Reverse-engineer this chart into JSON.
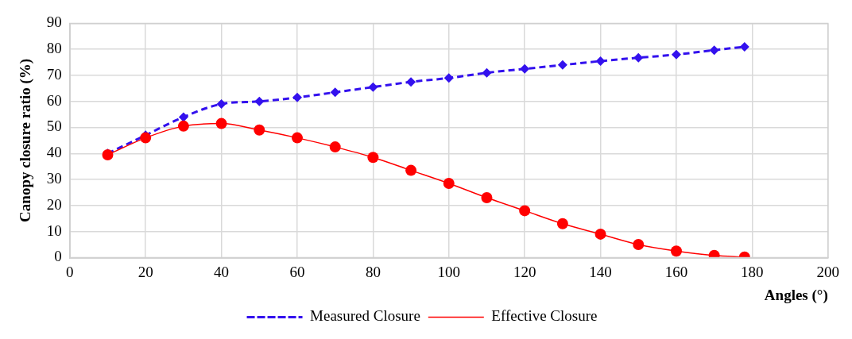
{
  "chart_data": {
    "type": "line",
    "xlabel": "Angles (°)",
    "ylabel": "Canopy closure ratio (%)",
    "x": [
      10,
      20,
      30,
      40,
      50,
      60,
      70,
      80,
      90,
      100,
      110,
      120,
      130,
      140,
      150,
      160,
      170,
      178
    ],
    "series": [
      {
        "name": "Measured Closure",
        "color": "#3311ee",
        "marker": "diamond",
        "line_style": "dashed",
        "values": [
          40,
          47,
          54,
          59,
          60,
          61.5,
          63.5,
          65.5,
          67.5,
          69,
          71,
          72.5,
          74,
          75.5,
          76.8,
          78,
          79.7,
          81
        ]
      },
      {
        "name": "Effective Closure",
        "color": "#ff0000",
        "marker": "circle",
        "line_style": "solid",
        "values": [
          39.5,
          46,
          50.5,
          51.5,
          49,
          46,
          42.5,
          38.5,
          33.5,
          28.5,
          23,
          18,
          13,
          9,
          5,
          2.5,
          0.8,
          0.2
        ]
      }
    ],
    "xlim": [
      0,
      200
    ],
    "xticks": [
      0,
      20,
      40,
      60,
      80,
      100,
      120,
      140,
      160,
      180,
      200
    ],
    "ylim": [
      0,
      90
    ],
    "yticks": [
      0,
      10,
      20,
      30,
      40,
      50,
      60,
      70,
      80,
      90
    ],
    "grid": true,
    "legend": "bottom"
  }
}
